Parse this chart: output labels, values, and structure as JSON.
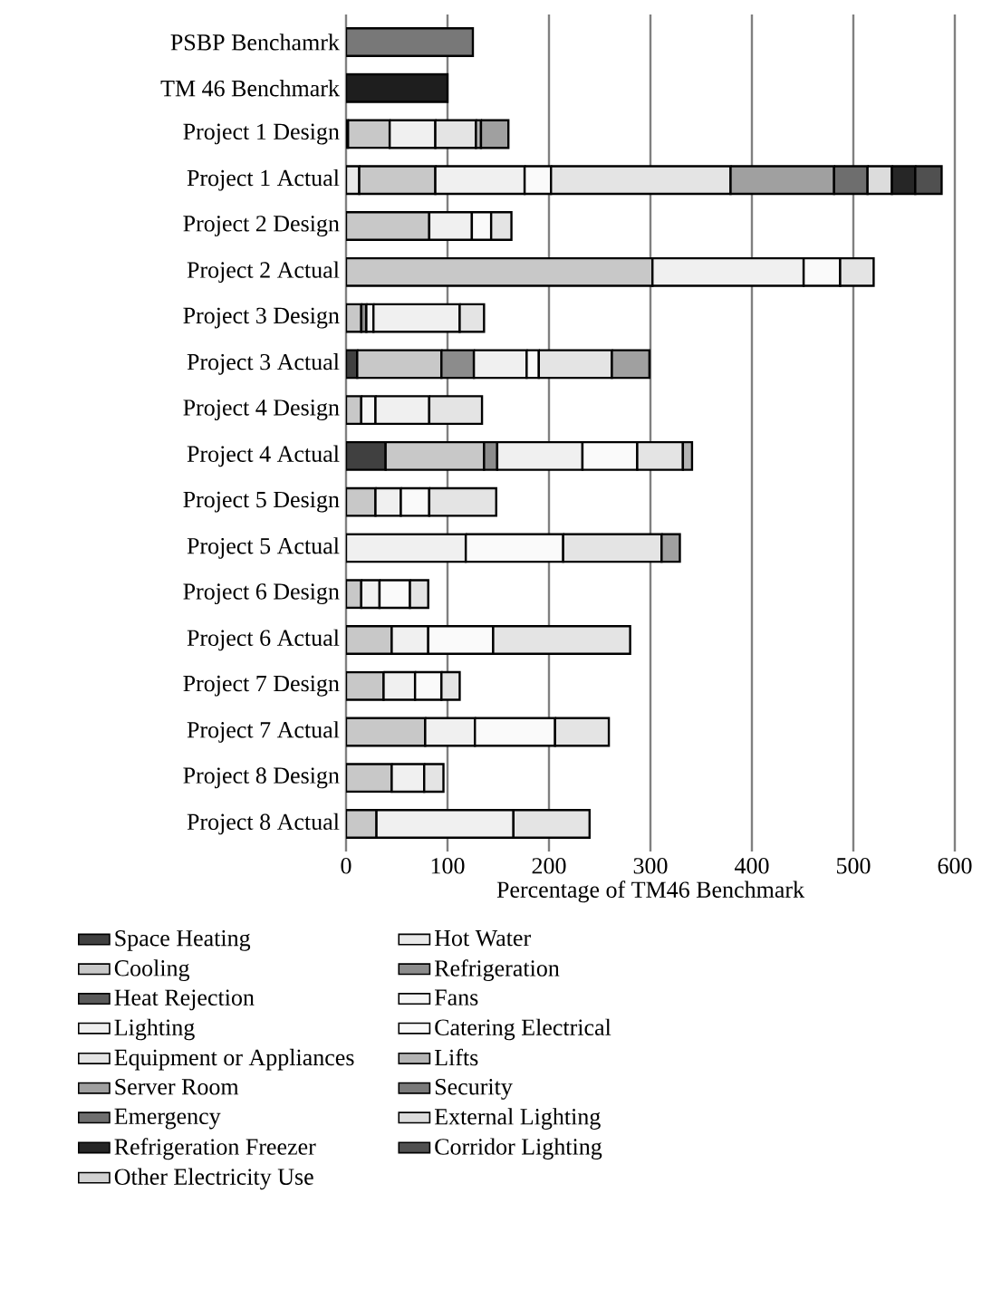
{
  "chart_data": {
    "type": "bar",
    "orientation": "horizontal",
    "stacked": true,
    "categories": [
      "PSBP Benchamrk",
      "TM 46 Benchmark",
      "Project 1 Design",
      "Project 1 Actual",
      "Project 2 Design",
      "Project 2 Actual",
      "Project 3 Design",
      "Project 3 Actual",
      "Project 4 Design",
      "Project 4 Actual",
      "Project 5 Design",
      "Project 5 Actual",
      "Project 6 Design",
      "Project 6 Actual",
      "Project 7 Design",
      "Project 7 Actual",
      "Project 8 Design",
      "Project 8 Actual"
    ],
    "xlabel": "Percentage of TM46 Benchmark",
    "xlim": [
      0,
      600
    ],
    "xticks": [
      0,
      100,
      200,
      300,
      400,
      500,
      600
    ],
    "grid": "x",
    "legend": "bottom",
    "series": [
      {
        "name": "Space Heating",
        "color": "#404040",
        "values": [
          null,
          null,
          null,
          null,
          null,
          null,
          null,
          11,
          null,
          39,
          null,
          null,
          null,
          null,
          null,
          null,
          null,
          null
        ]
      },
      {
        "name": "Hot Water",
        "color": "#e9e9e9",
        "values": [
          null,
          null,
          2,
          13,
          null,
          null,
          null,
          null,
          null,
          null,
          null,
          null,
          null,
          null,
          null,
          null,
          null,
          null
        ]
      },
      {
        "name": "Cooling",
        "color": "#c8c8c8",
        "values": [
          null,
          null,
          41,
          75,
          82,
          302,
          15,
          83,
          15,
          97,
          29,
          null,
          15,
          45,
          37,
          78,
          45,
          30
        ]
      },
      {
        "name": "Refrigeration",
        "color": "#8c8c8c",
        "values": [
          null,
          null,
          null,
          null,
          null,
          null,
          5,
          32,
          null,
          13,
          null,
          null,
          null,
          null,
          null,
          null,
          null,
          null
        ]
      },
      {
        "name": "Heat Rejection",
        "color": "#5a5a5a",
        "values": [
          null,
          null,
          null,
          null,
          null,
          null,
          null,
          null,
          null,
          null,
          null,
          null,
          null,
          null,
          null,
          null,
          null,
          null
        ]
      },
      {
        "name": "Fans",
        "color": "#f6f6f6",
        "values": [
          null,
          null,
          null,
          null,
          null,
          null,
          7,
          null,
          14,
          null,
          null,
          null,
          null,
          null,
          null,
          null,
          null,
          null
        ]
      },
      {
        "name": "Lighting",
        "color": "#f0f0f0",
        "values": [
          null,
          null,
          45,
          88,
          42,
          149,
          85,
          52,
          53,
          84,
          25,
          118,
          18,
          36,
          31,
          49,
          32,
          135
        ]
      },
      {
        "name": "Catering Electrical",
        "color": "#fafafa",
        "values": [
          null,
          null,
          null,
          26,
          19,
          36,
          null,
          12,
          null,
          54,
          28,
          96,
          30,
          64,
          26,
          79,
          null,
          null
        ]
      },
      {
        "name": "Equipment or Appliances",
        "color": "#e4e4e4",
        "values": [
          null,
          null,
          40,
          177,
          20,
          33,
          24,
          72,
          52,
          45,
          66,
          97,
          18,
          135,
          18,
          53,
          19,
          75
        ]
      },
      {
        "name": "Lifts",
        "color": "#b4b4b4",
        "values": [
          null,
          null,
          5,
          null,
          null,
          null,
          null,
          null,
          null,
          9,
          null,
          null,
          null,
          null,
          null,
          null,
          null,
          null
        ]
      },
      {
        "name": "Server Room",
        "color": "#a0a0a0",
        "values": [
          null,
          null,
          27,
          102,
          null,
          null,
          null,
          37,
          null,
          null,
          null,
          18,
          null,
          null,
          null,
          null,
          null,
          null
        ]
      },
      {
        "name": "Security",
        "color": "#7a7a7a",
        "values": [
          null,
          null,
          null,
          null,
          null,
          null,
          null,
          null,
          null,
          null,
          null,
          null,
          null,
          null,
          null,
          null,
          null,
          null
        ]
      },
      {
        "name": "Emergency",
        "color": "#6e6e6e",
        "values": [
          null,
          null,
          null,
          33,
          null,
          null,
          null,
          null,
          null,
          null,
          null,
          null,
          null,
          null,
          null,
          null,
          null,
          null
        ]
      },
      {
        "name": "External Lighting",
        "color": "#dcdcdc",
        "values": [
          null,
          null,
          null,
          24,
          null,
          null,
          null,
          null,
          null,
          null,
          null,
          null,
          null,
          null,
          null,
          null,
          null,
          null
        ]
      },
      {
        "name": "Refrigeration Freezer",
        "color": "#262626",
        "values": [
          null,
          null,
          null,
          23,
          null,
          null,
          null,
          null,
          null,
          null,
          null,
          null,
          null,
          null,
          null,
          null,
          null,
          null
        ]
      },
      {
        "name": "Corridor Lighting",
        "color": "#505050",
        "values": [
          null,
          null,
          null,
          26,
          null,
          null,
          null,
          null,
          null,
          null,
          null,
          null,
          null,
          null,
          null,
          null,
          null,
          null
        ]
      },
      {
        "name": "Other Electricity Use",
        "color": "#d2d2d2",
        "values": [
          null,
          null,
          null,
          null,
          null,
          null,
          null,
          null,
          null,
          null,
          null,
          null,
          null,
          null,
          null,
          null,
          null,
          null
        ]
      },
      {
        "color": "#787878",
        "values": [
          125,
          null,
          null,
          null,
          null,
          null,
          null,
          null,
          null,
          null,
          null,
          null,
          null,
          null,
          null,
          null,
          null,
          null
        ]
      },
      {
        "color": "#1e1e1e",
        "values": [
          null,
          100,
          null,
          null,
          null,
          null,
          null,
          null,
          null,
          null,
          null,
          null,
          null,
          null,
          null,
          null,
          null,
          null
        ]
      }
    ]
  }
}
